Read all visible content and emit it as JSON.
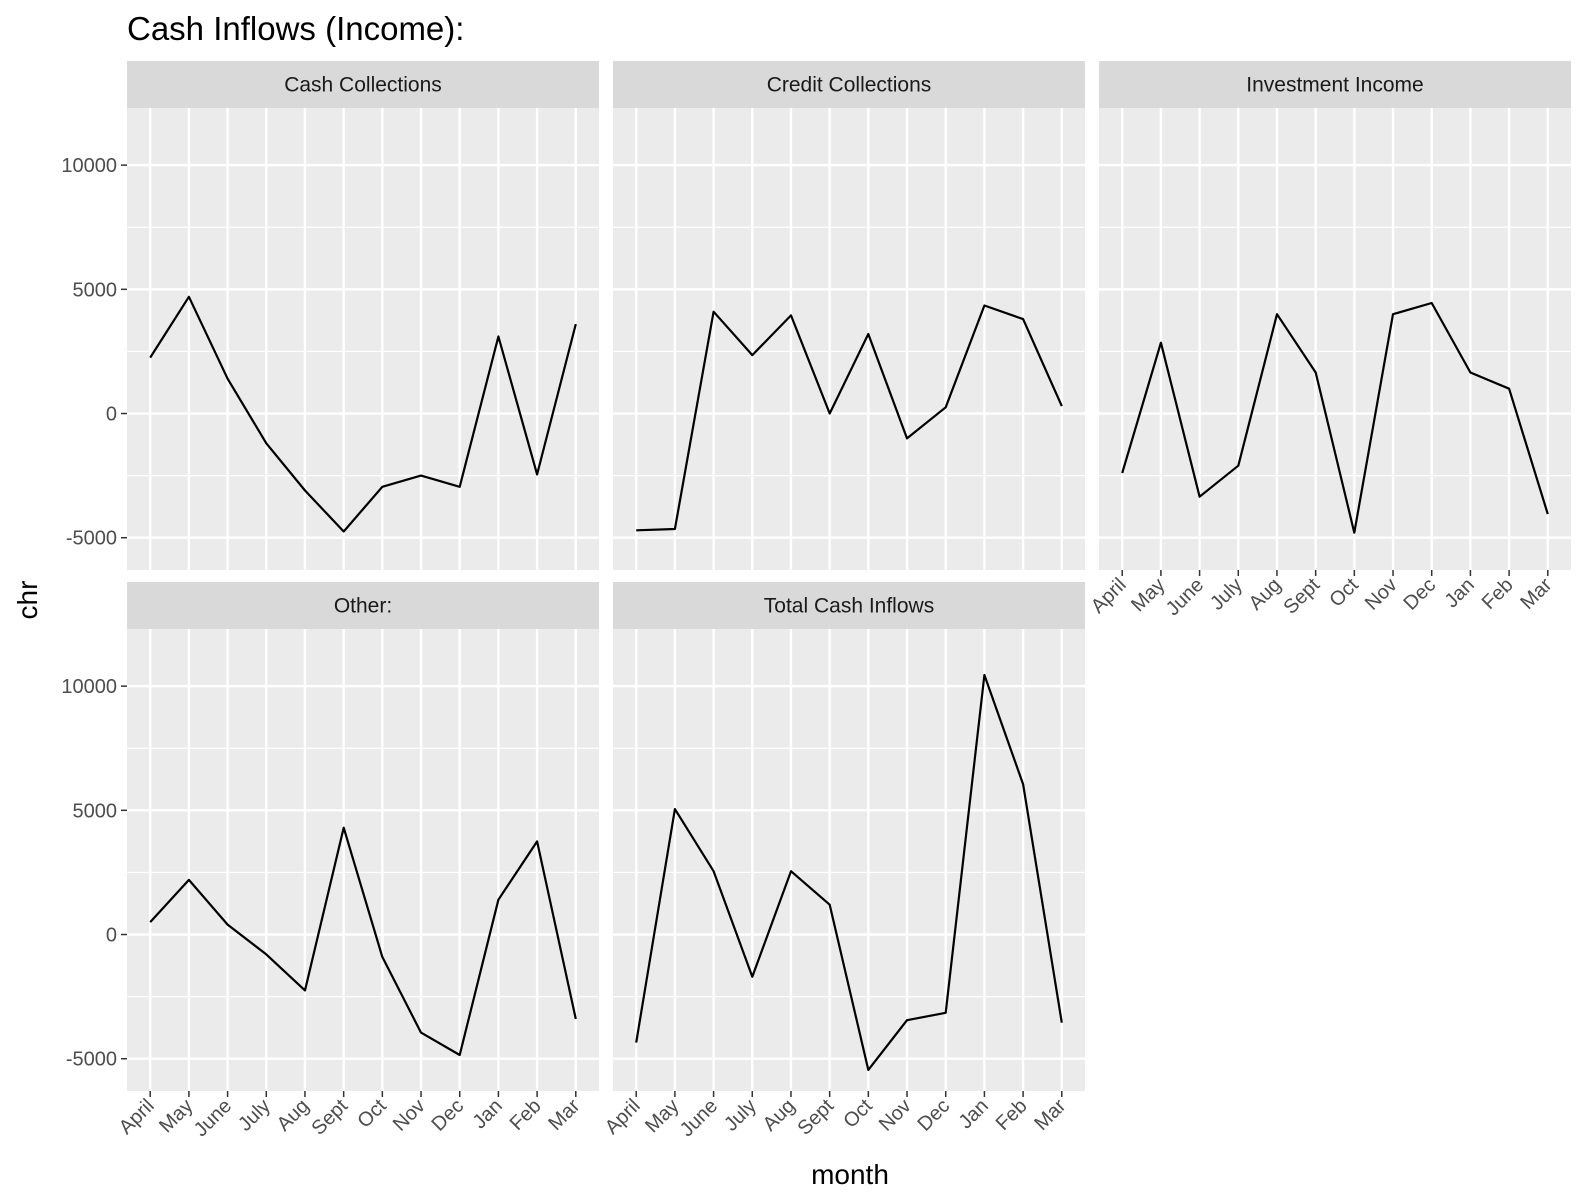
{
  "chart_data": {
    "type": "line",
    "title": "Cash Inflows (Income):",
    "xlabel": "month",
    "ylabel": "chr",
    "categories": [
      "April",
      "May",
      "June",
      "July",
      "Aug",
      "Sept",
      "Oct",
      "Nov",
      "Dec",
      "Jan",
      "Feb",
      "Mar"
    ],
    "ylim": [
      -6300,
      12300
    ],
    "y_ticks": [
      -5000,
      0,
      5000,
      10000
    ],
    "y_tick_labels": [
      "-5000",
      "0",
      "5000",
      "10000"
    ],
    "grid": true,
    "facets": [
      {
        "name": "Cash Collections",
        "values": [
          2250,
          4700,
          1400,
          -1200,
          -3100,
          -4750,
          -2950,
          -2500,
          -2950,
          3100,
          -2450,
          3600
        ]
      },
      {
        "name": "Credit Collections",
        "values": [
          -4700,
          -4650,
          4100,
          2350,
          3950,
          0,
          3200,
          -1000,
          250,
          4350,
          3800,
          300
        ]
      },
      {
        "name": "Investment Income",
        "values": [
          -2400,
          2850,
          -3350,
          -2100,
          4000,
          1650,
          -4800,
          4000,
          4450,
          1650,
          1000,
          -4050
        ]
      },
      {
        "name": "Other:",
        "values": [
          500,
          2200,
          400,
          -800,
          -2250,
          4300,
          -900,
          -3950,
          -4850,
          1400,
          3750,
          -3400
        ]
      },
      {
        "name": "Total Cash Inflows",
        "values": [
          -4350,
          5050,
          2550,
          -1700,
          2550,
          1200,
          -5450,
          -3450,
          -3150,
          10450,
          6050,
          -3550
        ]
      }
    ],
    "colors": {
      "panel_bg": "#ebebeb",
      "strip_bg": "#d9d9d9",
      "grid": "#ffffff",
      "line": "#000000",
      "tick": "#333333"
    }
  }
}
